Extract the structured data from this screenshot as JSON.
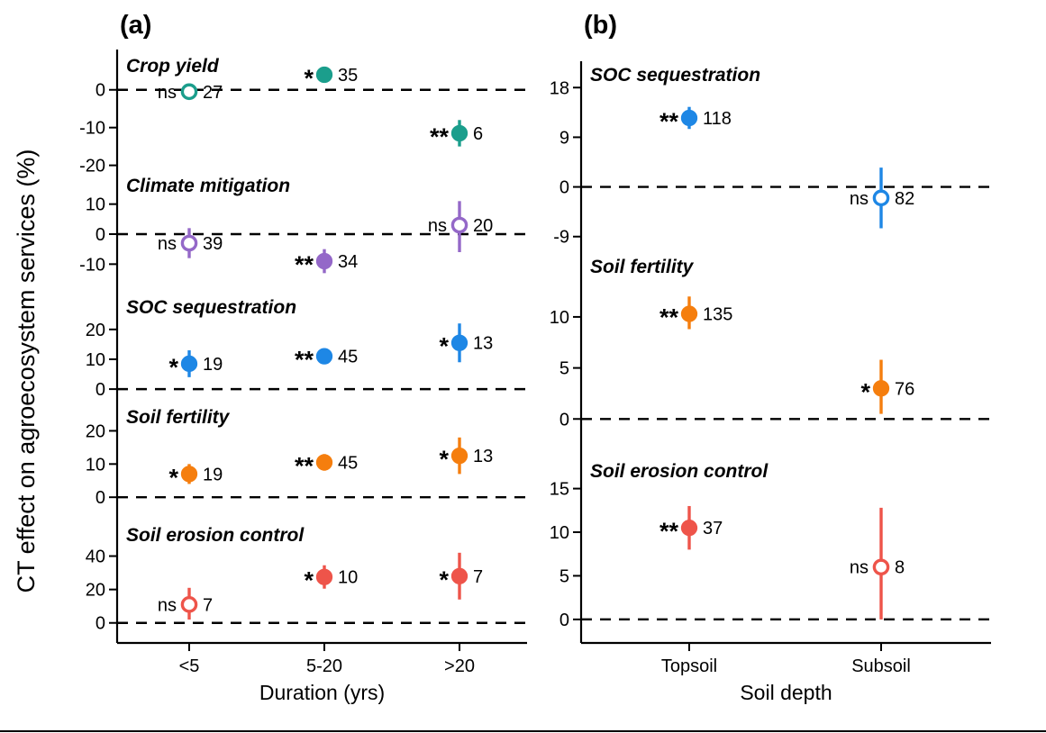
{
  "figure": {
    "ylabel": "CT effect on agroecosystem services (%)"
  },
  "chart_data": [
    {
      "type": "scatter",
      "panel_label": "(a)",
      "xlabel": "Duration (yrs)",
      "categories": [
        "<5",
        "5-20",
        ">20"
      ],
      "subpanels": [
        {
          "title": "Crop yield",
          "color": "#1b9e8c",
          "ylim": [
            -22,
            9
          ],
          "yticks": [
            0,
            -10,
            -20
          ],
          "points": [
            {
              "category": "<5",
              "value": -0.5,
              "ci_low": -2,
              "ci_high": 1,
              "sig": "ns",
              "n": 27,
              "filled": false
            },
            {
              "category": "5-20",
              "value": 4,
              "ci_low": 2.5,
              "ci_high": 5.5,
              "sig": "*",
              "n": 35,
              "filled": true
            },
            {
              "category": ">20",
              "value": -11.5,
              "ci_low": -15,
              "ci_high": -8,
              "sig": "**",
              "n": 6,
              "filled": true
            }
          ]
        },
        {
          "title": "Climate mitigation",
          "color": "#9468c8",
          "ylim": [
            -21,
            15
          ],
          "yticks": [
            10,
            0,
            -10
          ],
          "points": [
            {
              "category": "<5",
              "value": -3,
              "ci_low": -8,
              "ci_high": 2,
              "sig": "ns",
              "n": 39,
              "filled": false
            },
            {
              "category": "5-20",
              "value": -9,
              "ci_low": -13,
              "ci_high": -5,
              "sig": "**",
              "n": 34,
              "filled": true
            },
            {
              "category": ">20",
              "value": 3,
              "ci_low": -6,
              "ci_high": 11,
              "sig": "ns",
              "n": 20,
              "filled": false
            }
          ]
        },
        {
          "title": "SOC sequestration",
          "color": "#1e87e5",
          "ylim": [
            -6,
            29
          ],
          "yticks": [
            20,
            10,
            0
          ],
          "points": [
            {
              "category": "<5",
              "value": 8.5,
              "ci_low": 4,
              "ci_high": 13,
              "sig": "*",
              "n": 19,
              "filled": true
            },
            {
              "category": "5-20",
              "value": 11,
              "ci_low": 8.5,
              "ci_high": 13.5,
              "sig": "**",
              "n": 45,
              "filled": true
            },
            {
              "category": ">20",
              "value": 15.5,
              "ci_low": 9,
              "ci_high": 22,
              "sig": "*",
              "n": 13,
              "filled": true
            }
          ]
        },
        {
          "title": "Soil fertility",
          "color": "#f57e0e",
          "ylim": [
            -7,
            25
          ],
          "yticks": [
            20,
            10,
            0
          ],
          "points": [
            {
              "category": "<5",
              "value": 7,
              "ci_low": 4,
              "ci_high": 10,
              "sig": "*",
              "n": 19,
              "filled": true
            },
            {
              "category": "5-20",
              "value": 10.5,
              "ci_low": 8,
              "ci_high": 13,
              "sig": "**",
              "n": 45,
              "filled": true
            },
            {
              "category": ">20",
              "value": 12.5,
              "ci_low": 7,
              "ci_high": 18,
              "sig": "*",
              "n": 13,
              "filled": true
            }
          ]
        },
        {
          "title": "Soil erosion control",
          "color": "#ee544a",
          "ylim": [
            -12,
            57
          ],
          "yticks": [
            40,
            20,
            0
          ],
          "points": [
            {
              "category": "<5",
              "value": 11,
              "ci_low": 2,
              "ci_high": 21,
              "sig": "ns",
              "n": 7,
              "filled": false
            },
            {
              "category": "5-20",
              "value": 27.5,
              "ci_low": 20.5,
              "ci_high": 34.5,
              "sig": "*",
              "n": 10,
              "filled": true
            },
            {
              "category": ">20",
              "value": 28,
              "ci_low": 14,
              "ci_high": 42,
              "sig": "*",
              "n": 7,
              "filled": true
            }
          ]
        }
      ]
    },
    {
      "type": "scatter",
      "panel_label": "(b)",
      "xlabel": "Soil depth",
      "categories": [
        "Topsoil",
        "Subsoil"
      ],
      "subpanels": [
        {
          "title": "SOC sequestration",
          "color": "#1e87e5",
          "ylim": [
            -11,
            20
          ],
          "yticks": [
            18,
            9,
            0,
            -9
          ],
          "points": [
            {
              "category": "Topsoil",
              "value": 12.5,
              "ci_low": 10.5,
              "ci_high": 14.5,
              "sig": "**",
              "n": 118,
              "filled": true
            },
            {
              "category": "Subsoil",
              "value": -2,
              "ci_low": -7.5,
              "ci_high": 3.5,
              "sig": "ns",
              "n": 82,
              "filled": false
            }
          ]
        },
        {
          "title": "Soil fertility",
          "color": "#f57e0e",
          "ylim": [
            -1.3,
            13.7
          ],
          "yticks": [
            10,
            5,
            0
          ],
          "points": [
            {
              "category": "Topsoil",
              "value": 10.3,
              "ci_low": 8.8,
              "ci_high": 12,
              "sig": "**",
              "n": 135,
              "filled": true
            },
            {
              "category": "Subsoil",
              "value": 3,
              "ci_low": 0.5,
              "ci_high": 5.8,
              "sig": "*",
              "n": 76,
              "filled": true
            }
          ]
        },
        {
          "title": "Soil erosion control",
          "color": "#ee544a",
          "ylim": [
            -2.7,
            16.3
          ],
          "yticks": [
            15,
            10,
            5,
            0
          ],
          "points": [
            {
              "category": "Topsoil",
              "value": 10.5,
              "ci_low": 8,
              "ci_high": 13,
              "sig": "**",
              "n": 37,
              "filled": true
            },
            {
              "category": "Subsoil",
              "value": 6,
              "ci_low": 0,
              "ci_high": 12.8,
              "sig": "ns",
              "n": 8,
              "filled": false
            }
          ]
        }
      ]
    }
  ]
}
